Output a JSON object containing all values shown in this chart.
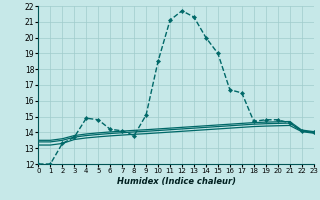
{
  "background_color": "#c6e8e8",
  "grid_color": "#a0cccc",
  "line_color": "#006868",
  "xlabel": "Humidex (Indice chaleur)",
  "ylim": [
    12,
    22
  ],
  "xlim": [
    0,
    23
  ],
  "yticks": [
    12,
    13,
    14,
    15,
    16,
    17,
    18,
    19,
    20,
    21,
    22
  ],
  "xticks": [
    0,
    1,
    2,
    3,
    4,
    5,
    6,
    7,
    8,
    9,
    10,
    11,
    12,
    13,
    14,
    15,
    16,
    17,
    18,
    19,
    20,
    21,
    22,
    23
  ],
  "series_main_y": [
    12,
    12,
    13.3,
    13.7,
    14.9,
    14.8,
    14.2,
    14.1,
    13.8,
    15.1,
    18.5,
    21.1,
    21.7,
    21.3,
    20.0,
    19.0,
    16.7,
    16.5,
    14.7,
    14.8,
    14.8,
    14.6,
    14.1,
    14.0
  ],
  "series_flat1_y": [
    13.2,
    13.2,
    13.3,
    13.55,
    13.65,
    13.72,
    13.78,
    13.83,
    13.88,
    13.92,
    13.97,
    14.02,
    14.07,
    14.12,
    14.17,
    14.22,
    14.27,
    14.32,
    14.37,
    14.4,
    14.42,
    14.44,
    14.05,
    13.95
  ],
  "series_flat2_y": [
    13.4,
    13.4,
    13.5,
    13.7,
    13.8,
    13.87,
    13.93,
    13.98,
    14.03,
    14.07,
    14.12,
    14.17,
    14.22,
    14.27,
    14.32,
    14.37,
    14.42,
    14.47,
    14.52,
    14.55,
    14.57,
    14.59,
    14.1,
    14.0
  ],
  "series_flat3_y": [
    13.5,
    13.5,
    13.6,
    13.8,
    13.9,
    13.97,
    14.03,
    14.08,
    14.13,
    14.17,
    14.22,
    14.27,
    14.32,
    14.37,
    14.42,
    14.47,
    14.52,
    14.57,
    14.62,
    14.65,
    14.67,
    14.69,
    14.15,
    14.05
  ]
}
